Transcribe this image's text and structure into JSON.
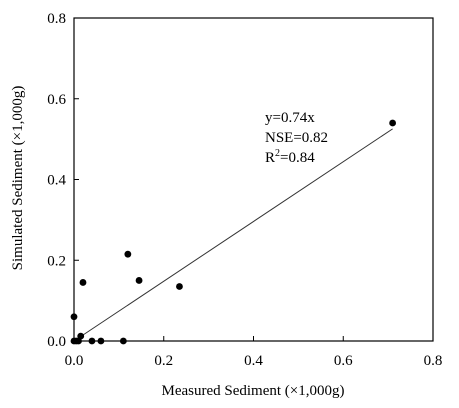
{
  "chart_data": {
    "type": "scatter",
    "xlabel": "Measured Sediment (×1,000g)",
    "ylabel": "Simulated Sediment (×1,000g)",
    "xlim": [
      0,
      0.8
    ],
    "ylim": [
      0,
      0.8
    ],
    "xticks": [
      0.0,
      0.2,
      0.4,
      0.6,
      0.8
    ],
    "yticks": [
      0.0,
      0.2,
      0.4,
      0.6,
      0.8
    ],
    "xtick_labels": [
      "0.0",
      "0.2",
      "0.4",
      "0.6",
      "0.8"
    ],
    "ytick_labels": [
      "0.0",
      "0.2",
      "0.4",
      "0.6",
      "0.8"
    ],
    "grid": false,
    "points": [
      {
        "x": 0.0,
        "y": 0.06
      },
      {
        "x": 0.0,
        "y": 0.0
      },
      {
        "x": 0.005,
        "y": 0.0
      },
      {
        "x": 0.01,
        "y": 0.0
      },
      {
        "x": 0.015,
        "y": 0.012
      },
      {
        "x": 0.02,
        "y": 0.145
      },
      {
        "x": 0.04,
        "y": 0.0
      },
      {
        "x": 0.06,
        "y": 0.0
      },
      {
        "x": 0.11,
        "y": 0.0
      },
      {
        "x": 0.12,
        "y": 0.215
      },
      {
        "x": 0.145,
        "y": 0.15
      },
      {
        "x": 0.235,
        "y": 0.135
      },
      {
        "x": 0.71,
        "y": 0.54
      }
    ],
    "trendline": {
      "slope": 0.74,
      "x_range": [
        0,
        0.71
      ]
    },
    "annotation": {
      "equation": "y=0.74x",
      "nse": "NSE=0.82",
      "r2_prefix": "R",
      "r2_superscript": "2",
      "r2_value": "=0.84"
    }
  }
}
